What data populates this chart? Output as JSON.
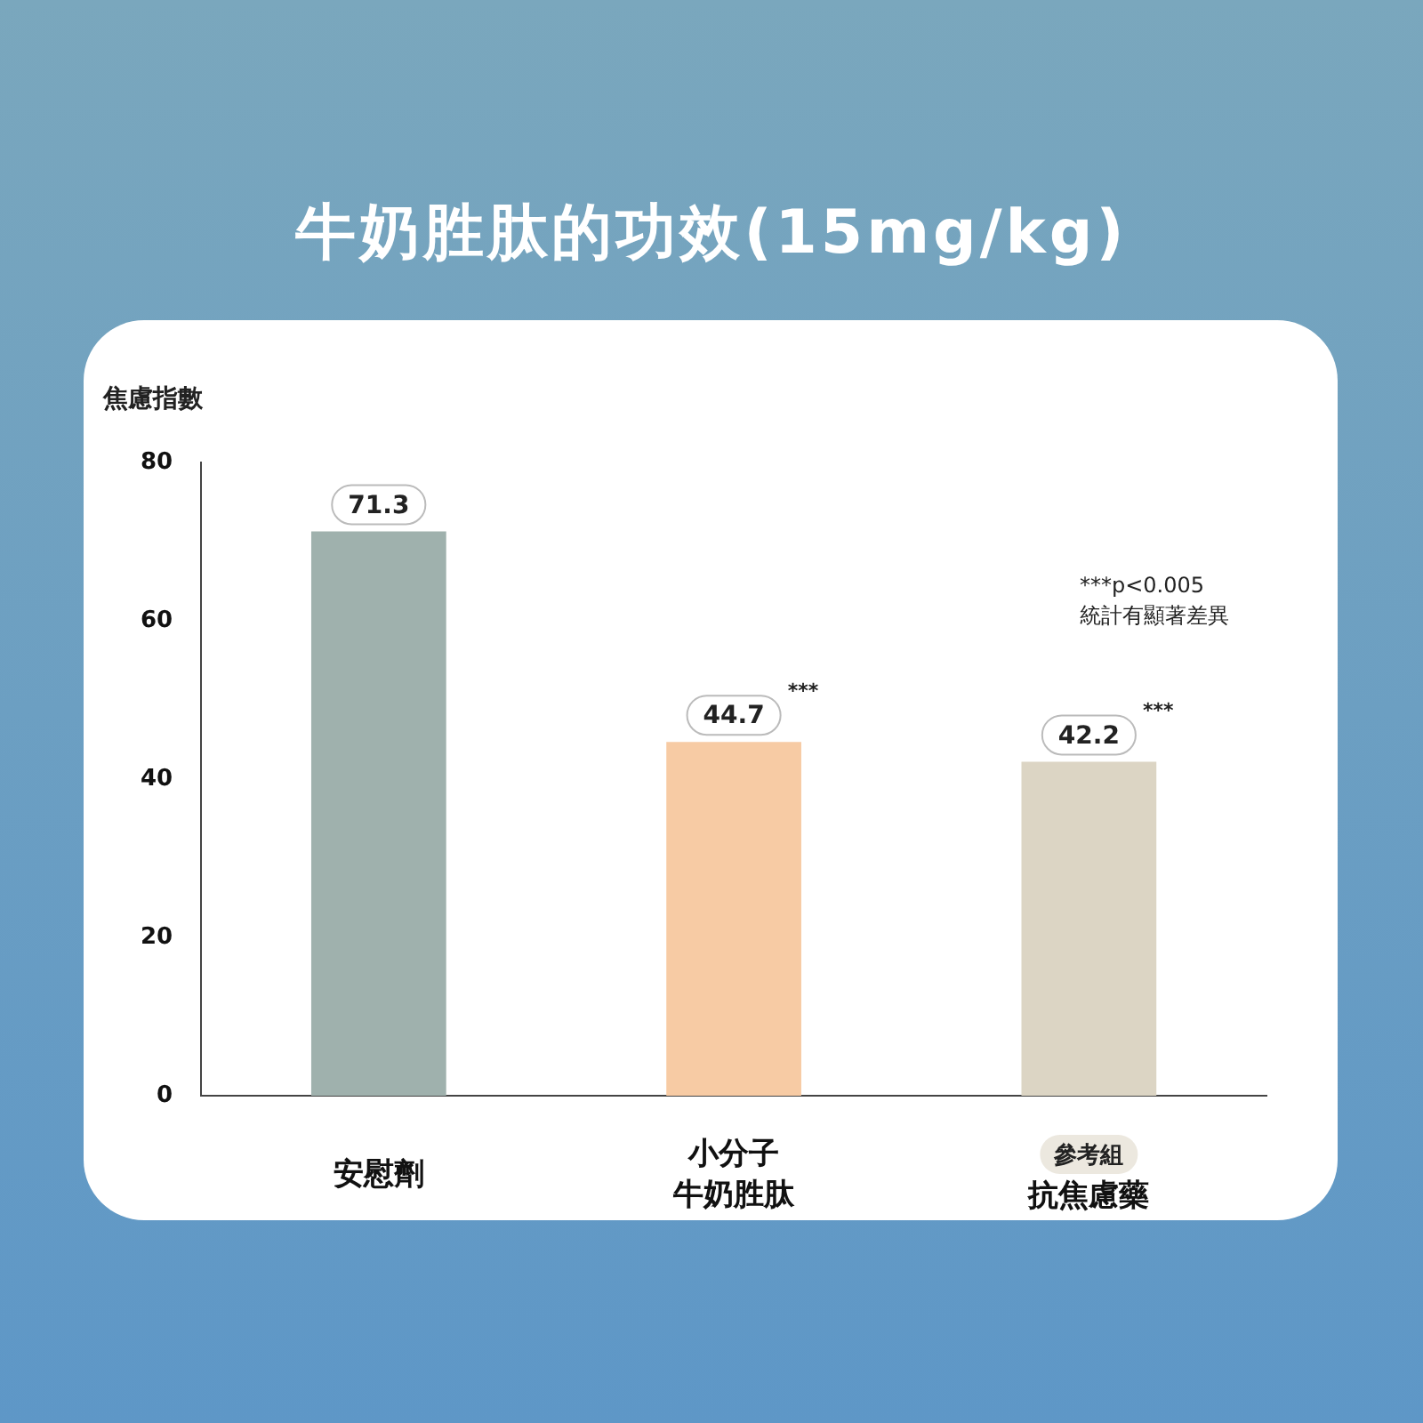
{
  "chart_data": {
    "type": "bar",
    "title": "牛奶胜肽的功效(15mg/kg)",
    "ylabel": "焦慮指數",
    "categories": [
      "安慰劑",
      "小分子牛奶胜肽",
      "抗焦慮藥"
    ],
    "values": [
      71.3,
      44.7,
      42.2
    ],
    "colors": [
      "#9fb1ad",
      "#f7cba4",
      "#dcd5c4"
    ],
    "ylim": [
      0,
      80
    ],
    "yticks": [
      0,
      20,
      40,
      60,
      80
    ],
    "grid": false,
    "legend": false,
    "data_labels": true,
    "annotations": [
      "***p<0.005\n統計有顯著差異",
      "***",
      "***",
      "參考組"
    ]
  }
}
